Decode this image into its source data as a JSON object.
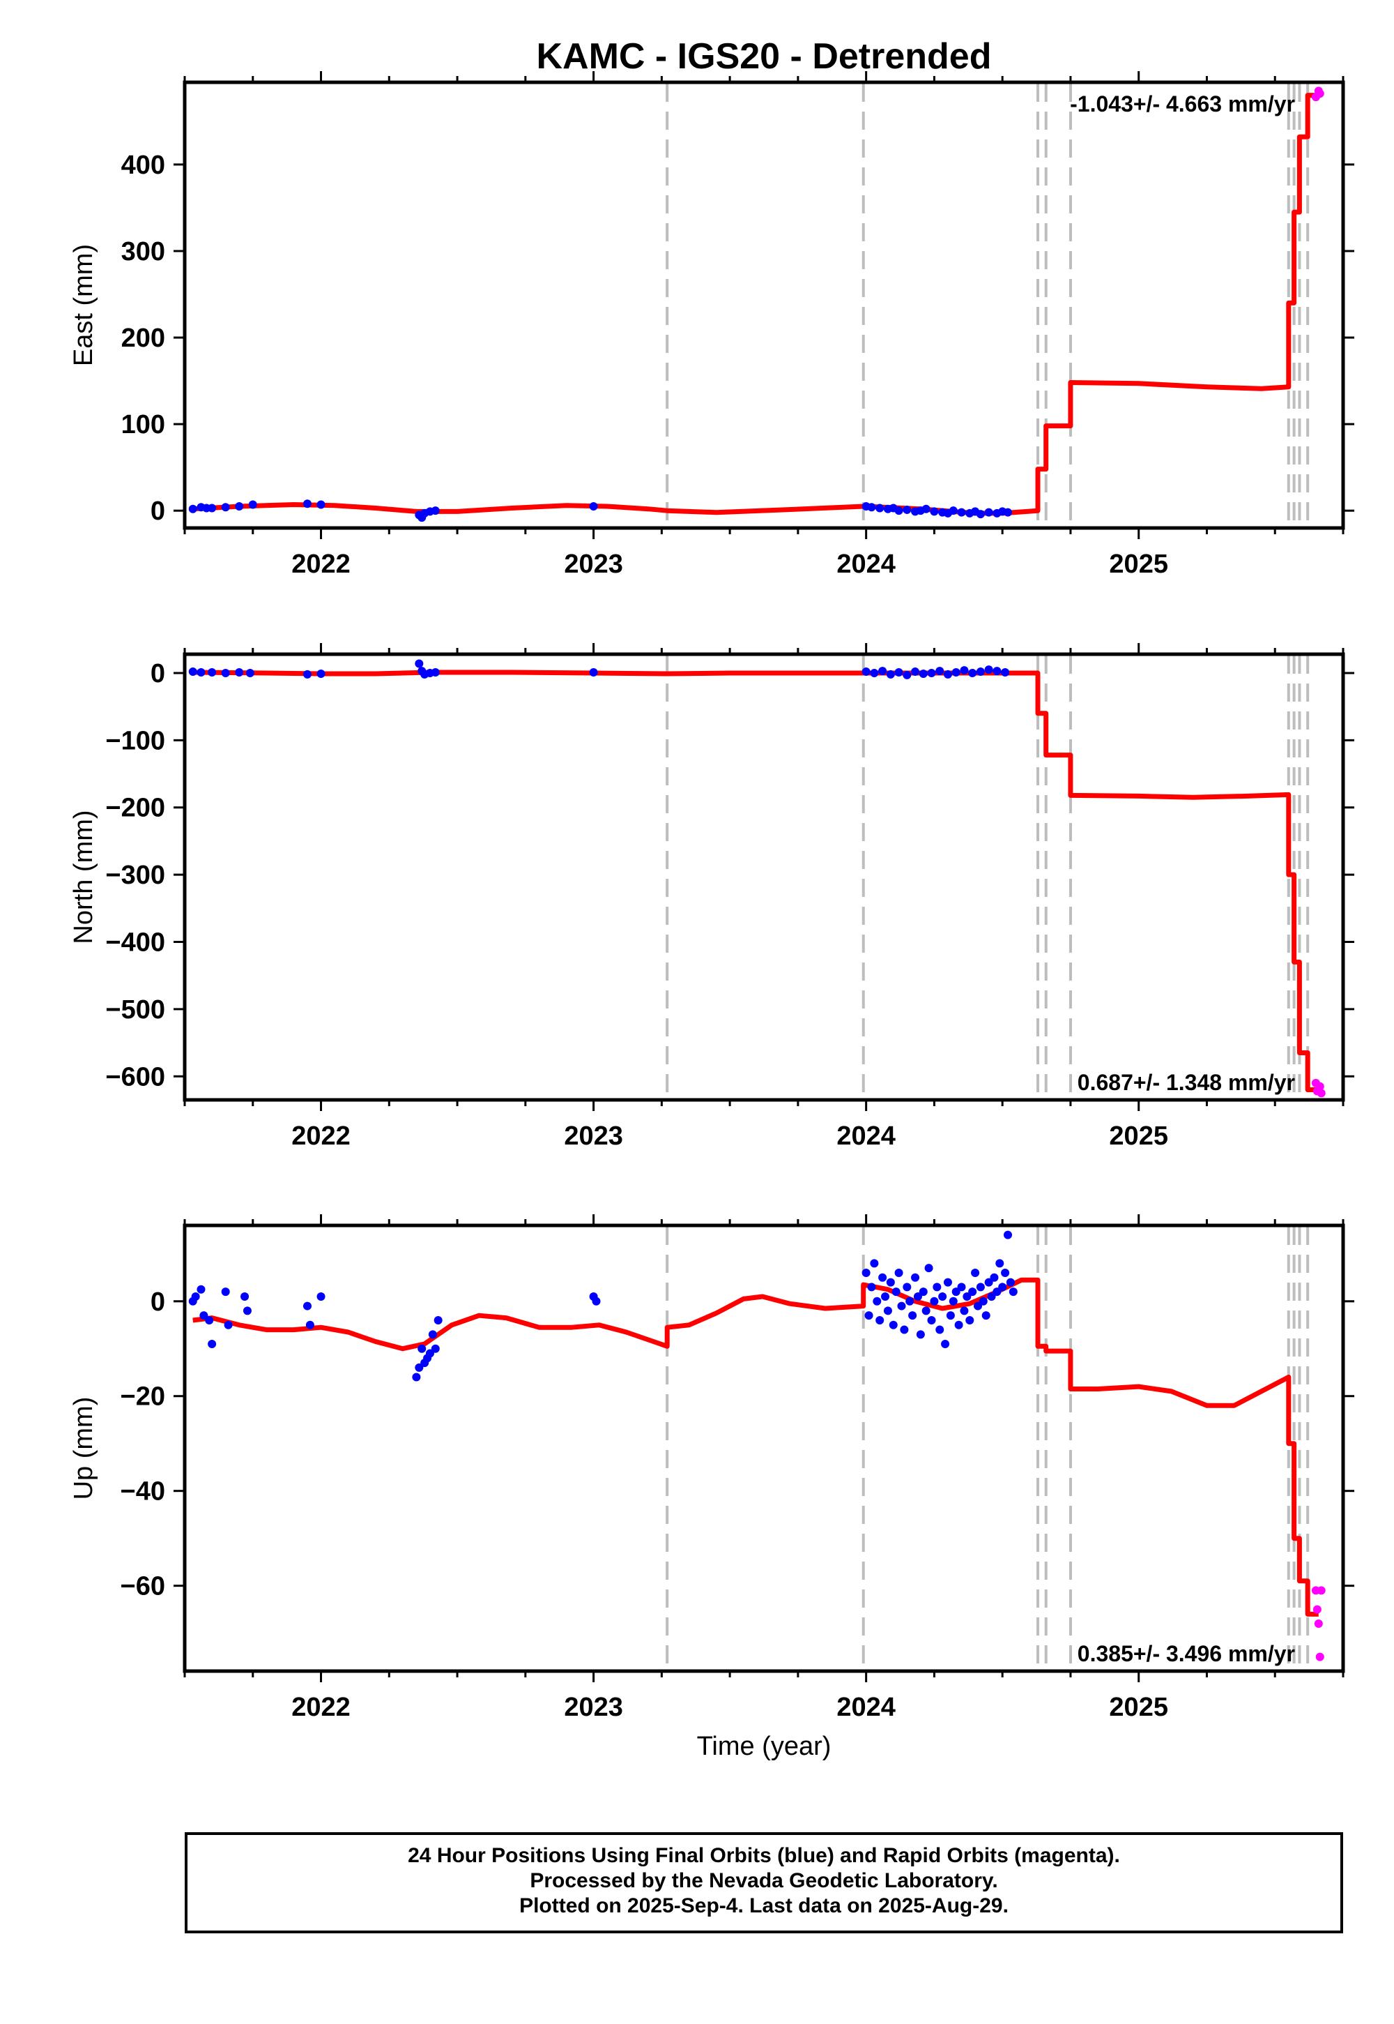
{
  "chart_data": {
    "type": "scatter",
    "title": "KAMC - IGS20 - Detrended",
    "xlabel": "Time (year)",
    "xlim": [
      2021.5,
      2025.75
    ],
    "xticks": [
      2022,
      2023,
      2024,
      2025
    ],
    "xtick_labels": [
      "2022",
      "2023",
      "2024",
      "2025"
    ],
    "event_lines": [
      2023.27,
      2023.99,
      2024.63,
      2024.66,
      2024.75,
      2025.55,
      2025.57,
      2025.59,
      2025.62
    ],
    "panels": [
      {
        "name": "east",
        "ylabel": "East (mm)",
        "ylim": [
          -20,
          495
        ],
        "yticks": [
          0,
          100,
          200,
          300,
          400
        ],
        "ytick_labels": [
          "0",
          "100",
          "200",
          "300",
          "400"
        ],
        "rate_label": "-1.043+/- 4.663 mm/yr",
        "label_pos": "top-right",
        "model": [
          [
            2021.53,
            2
          ],
          [
            2021.7,
            5
          ],
          [
            2021.9,
            7
          ],
          [
            2022.05,
            6
          ],
          [
            2022.2,
            3
          ],
          [
            2022.35,
            -1
          ],
          [
            2022.5,
            -1
          ],
          [
            2022.7,
            3
          ],
          [
            2022.9,
            6
          ],
          [
            2023.05,
            5
          ],
          [
            2023.2,
            2
          ],
          [
            2023.27,
            0
          ],
          [
            2023.45,
            -2
          ],
          [
            2023.7,
            1
          ],
          [
            2023.99,
            5
          ],
          [
            2024.0,
            5
          ],
          [
            2024.2,
            2
          ],
          [
            2024.4,
            -3
          ],
          [
            2024.5,
            -3
          ],
          [
            2024.63,
            0
          ],
          [
            2024.63,
            48
          ],
          [
            2024.66,
            48
          ],
          [
            2024.66,
            98
          ],
          [
            2024.75,
            98
          ],
          [
            2024.75,
            148
          ],
          [
            2025.0,
            147
          ],
          [
            2025.25,
            143
          ],
          [
            2025.45,
            141
          ],
          [
            2025.55,
            143
          ],
          [
            2025.55,
            240
          ],
          [
            2025.57,
            240
          ],
          [
            2025.57,
            345
          ],
          [
            2025.59,
            345
          ],
          [
            2025.59,
            432
          ],
          [
            2025.62,
            432
          ],
          [
            2025.62,
            480
          ],
          [
            2025.66,
            480
          ]
        ],
        "final_points": [
          [
            2021.53,
            2
          ],
          [
            2021.56,
            4
          ],
          [
            2021.58,
            3
          ],
          [
            2021.6,
            3
          ],
          [
            2021.65,
            4
          ],
          [
            2021.7,
            5
          ],
          [
            2021.75,
            7
          ],
          [
            2021.95,
            8
          ],
          [
            2022.0,
            7
          ],
          [
            2022.36,
            -5
          ],
          [
            2022.37,
            -8
          ],
          [
            2022.38,
            -3
          ],
          [
            2022.4,
            -1
          ],
          [
            2022.42,
            0
          ],
          [
            2023.0,
            5
          ],
          [
            2024.0,
            5
          ],
          [
            2024.02,
            4
          ],
          [
            2024.05,
            3
          ],
          [
            2024.08,
            2
          ],
          [
            2024.1,
            3
          ],
          [
            2024.12,
            0
          ],
          [
            2024.15,
            1
          ],
          [
            2024.18,
            -1
          ],
          [
            2024.2,
            0
          ],
          [
            2024.22,
            2
          ],
          [
            2024.25,
            -1
          ],
          [
            2024.28,
            -2
          ],
          [
            2024.3,
            -3
          ],
          [
            2024.32,
            0
          ],
          [
            2024.35,
            -2
          ],
          [
            2024.38,
            -3
          ],
          [
            2024.4,
            -1
          ],
          [
            2024.42,
            -4
          ],
          [
            2024.45,
            -2
          ],
          [
            2024.48,
            -3
          ],
          [
            2024.5,
            -1
          ],
          [
            2024.52,
            -2
          ]
        ],
        "rapid_points": [
          [
            2025.65,
            478
          ],
          [
            2025.66,
            485
          ],
          [
            2025.665,
            482
          ]
        ]
      },
      {
        "name": "north",
        "ylabel": "North (mm)",
        "ylim": [
          -635,
          28
        ],
        "yticks": [
          0,
          -100,
          -200,
          -300,
          -400,
          -500,
          -600
        ],
        "ytick_labels": [
          "0",
          "−100",
          "−200",
          "−300",
          "−400",
          "−500",
          "−600"
        ],
        "rate_label": "0.687+/- 1.348 mm/yr",
        "label_pos": "bottom-right",
        "model": [
          [
            2021.53,
            1
          ],
          [
            2021.8,
            0
          ],
          [
            2022.0,
            -1
          ],
          [
            2022.2,
            -1
          ],
          [
            2022.4,
            1
          ],
          [
            2022.7,
            1
          ],
          [
            2023.0,
            0
          ],
          [
            2023.27,
            -1
          ],
          [
            2023.5,
            0
          ],
          [
            2023.99,
            0
          ],
          [
            2024.3,
            0
          ],
          [
            2024.63,
            0
          ],
          [
            2024.63,
            -60
          ],
          [
            2024.66,
            -60
          ],
          [
            2024.66,
            -122
          ],
          [
            2024.75,
            -122
          ],
          [
            2024.75,
            -182
          ],
          [
            2025.0,
            -183
          ],
          [
            2025.2,
            -185
          ],
          [
            2025.4,
            -183
          ],
          [
            2025.55,
            -181
          ],
          [
            2025.55,
            -300
          ],
          [
            2025.57,
            -300
          ],
          [
            2025.57,
            -430
          ],
          [
            2025.59,
            -430
          ],
          [
            2025.59,
            -565
          ],
          [
            2025.62,
            -565
          ],
          [
            2025.62,
            -620
          ],
          [
            2025.66,
            -620
          ]
        ],
        "final_points": [
          [
            2021.53,
            2
          ],
          [
            2021.56,
            1
          ],
          [
            2021.6,
            1
          ],
          [
            2021.65,
            0
          ],
          [
            2021.7,
            1
          ],
          [
            2021.74,
            0
          ],
          [
            2021.95,
            -2
          ],
          [
            2022.0,
            -1
          ],
          [
            2022.36,
            14
          ],
          [
            2022.37,
            3
          ],
          [
            2022.38,
            -2
          ],
          [
            2022.4,
            0
          ],
          [
            2022.42,
            1
          ],
          [
            2023.0,
            1
          ],
          [
            2024.0,
            2
          ],
          [
            2024.03,
            0
          ],
          [
            2024.06,
            3
          ],
          [
            2024.09,
            -2
          ],
          [
            2024.12,
            1
          ],
          [
            2024.15,
            -3
          ],
          [
            2024.18,
            2
          ],
          [
            2024.21,
            -1
          ],
          [
            2024.24,
            0
          ],
          [
            2024.27,
            3
          ],
          [
            2024.3,
            -2
          ],
          [
            2024.33,
            1
          ],
          [
            2024.36,
            4
          ],
          [
            2024.39,
            0
          ],
          [
            2024.42,
            2
          ],
          [
            2024.45,
            5
          ],
          [
            2024.48,
            3
          ],
          [
            2024.51,
            1
          ]
        ],
        "rapid_points": [
          [
            2025.65,
            -610
          ],
          [
            2025.655,
            -622
          ],
          [
            2025.665,
            -615
          ],
          [
            2025.67,
            -625
          ]
        ]
      },
      {
        "name": "up",
        "ylabel": "Up (mm)",
        "ylim": [
          -78,
          16
        ],
        "yticks": [
          0,
          -20,
          -40,
          -60
        ],
        "ytick_labels": [
          "0",
          "−20",
          "−40",
          "−60"
        ],
        "rate_label": "0.385+/- 3.496 mm/yr",
        "label_pos": "bottom-right",
        "model": [
          [
            2021.53,
            -4
          ],
          [
            2021.6,
            -3.5
          ],
          [
            2021.7,
            -5
          ],
          [
            2021.8,
            -6
          ],
          [
            2021.9,
            -6
          ],
          [
            2022.0,
            -5.5
          ],
          [
            2022.1,
            -6.5
          ],
          [
            2022.2,
            -8.5
          ],
          [
            2022.3,
            -10
          ],
          [
            2022.38,
            -9
          ],
          [
            2022.48,
            -5
          ],
          [
            2022.58,
            -3
          ],
          [
            2022.68,
            -3.5
          ],
          [
            2022.8,
            -5.5
          ],
          [
            2022.92,
            -5.5
          ],
          [
            2023.02,
            -5
          ],
          [
            2023.12,
            -6.5
          ],
          [
            2023.22,
            -8.5
          ],
          [
            2023.27,
            -9.5
          ],
          [
            2023.27,
            -5.5
          ],
          [
            2023.35,
            -5
          ],
          [
            2023.45,
            -2.5
          ],
          [
            2023.55,
            0.5
          ],
          [
            2023.62,
            1
          ],
          [
            2023.72,
            -0.5
          ],
          [
            2023.85,
            -1.5
          ],
          [
            2023.99,
            -1
          ],
          [
            2023.99,
            3.5
          ],
          [
            2024.08,
            2.5
          ],
          [
            2024.18,
            0
          ],
          [
            2024.28,
            -1.5
          ],
          [
            2024.38,
            -0.5
          ],
          [
            2024.48,
            2
          ],
          [
            2024.57,
            4.5
          ],
          [
            2024.63,
            4.5
          ],
          [
            2024.63,
            -9.5
          ],
          [
            2024.66,
            -9.5
          ],
          [
            2024.66,
            -10.5
          ],
          [
            2024.75,
            -10.5
          ],
          [
            2024.75,
            -18.5
          ],
          [
            2024.85,
            -18.5
          ],
          [
            2025.0,
            -18
          ],
          [
            2025.12,
            -19
          ],
          [
            2025.25,
            -22
          ],
          [
            2025.35,
            -22
          ],
          [
            2025.45,
            -19
          ],
          [
            2025.55,
            -16
          ],
          [
            2025.55,
            -30
          ],
          [
            2025.57,
            -30
          ],
          [
            2025.57,
            -50
          ],
          [
            2025.59,
            -50
          ],
          [
            2025.59,
            -59
          ],
          [
            2025.62,
            -59
          ],
          [
            2025.62,
            -66
          ],
          [
            2025.66,
            -66
          ]
        ],
        "final_points": [
          [
            2021.53,
            0
          ],
          [
            2021.54,
            1
          ],
          [
            2021.56,
            2.5
          ],
          [
            2021.57,
            -3
          ],
          [
            2021.59,
            -4
          ],
          [
            2021.6,
            -9
          ],
          [
            2021.65,
            2
          ],
          [
            2021.66,
            -5
          ],
          [
            2021.72,
            1
          ],
          [
            2021.73,
            -2
          ],
          [
            2021.95,
            -1
          ],
          [
            2021.96,
            -5
          ],
          [
            2022.0,
            1
          ],
          [
            2022.35,
            -16
          ],
          [
            2022.36,
            -14
          ],
          [
            2022.37,
            -10
          ],
          [
            2022.38,
            -13
          ],
          [
            2022.39,
            -12
          ],
          [
            2022.4,
            -11
          ],
          [
            2022.41,
            -7
          ],
          [
            2022.42,
            -10
          ],
          [
            2022.43,
            -4
          ],
          [
            2023.0,
            1
          ],
          [
            2023.01,
            0
          ],
          [
            2024.0,
            6
          ],
          [
            2024.01,
            -3
          ],
          [
            2024.02,
            3
          ],
          [
            2024.03,
            8
          ],
          [
            2024.04,
            0
          ],
          [
            2024.05,
            -4
          ],
          [
            2024.06,
            5
          ],
          [
            2024.07,
            1
          ],
          [
            2024.08,
            -2
          ],
          [
            2024.09,
            4
          ],
          [
            2024.1,
            -5
          ],
          [
            2024.11,
            2
          ],
          [
            2024.12,
            6
          ],
          [
            2024.13,
            -1
          ],
          [
            2024.14,
            -6
          ],
          [
            2024.15,
            3
          ],
          [
            2024.16,
            0
          ],
          [
            2024.17,
            -3
          ],
          [
            2024.18,
            5
          ],
          [
            2024.19,
            1
          ],
          [
            2024.2,
            -7
          ],
          [
            2024.21,
            2
          ],
          [
            2024.22,
            -2
          ],
          [
            2024.23,
            7
          ],
          [
            2024.24,
            -4
          ],
          [
            2024.25,
            0
          ],
          [
            2024.26,
            3
          ],
          [
            2024.27,
            -6
          ],
          [
            2024.28,
            1
          ],
          [
            2024.29,
            -9
          ],
          [
            2024.3,
            4
          ],
          [
            2024.31,
            -3
          ],
          [
            2024.32,
            0
          ],
          [
            2024.33,
            2
          ],
          [
            2024.34,
            -5
          ],
          [
            2024.35,
            3
          ],
          [
            2024.36,
            -2
          ],
          [
            2024.37,
            1
          ],
          [
            2024.38,
            -4
          ],
          [
            2024.39,
            2
          ],
          [
            2024.4,
            6
          ],
          [
            2024.41,
            -1
          ],
          [
            2024.42,
            3
          ],
          [
            2024.43,
            0
          ],
          [
            2024.44,
            -3
          ],
          [
            2024.45,
            4
          ],
          [
            2024.46,
            1
          ],
          [
            2024.47,
            5
          ],
          [
            2024.48,
            2
          ],
          [
            2024.49,
            8
          ],
          [
            2024.5,
            3
          ],
          [
            2024.51,
            6
          ],
          [
            2024.52,
            14
          ],
          [
            2024.53,
            4
          ],
          [
            2024.54,
            2
          ]
        ],
        "rapid_points": [
          [
            2025.65,
            -61
          ],
          [
            2025.655,
            -65
          ],
          [
            2025.66,
            -68
          ],
          [
            2025.665,
            -75
          ],
          [
            2025.67,
            -61
          ]
        ]
      }
    ],
    "series": [
      {
        "name": "Final Orbits",
        "color": "#0000ff"
      },
      {
        "name": "Rapid Orbits",
        "color": "#ff00ff"
      },
      {
        "name": "Model",
        "color": "#ff0000"
      }
    ],
    "grid": false
  },
  "footer": {
    "line1": "24 Hour Positions Using Final Orbits (blue) and Rapid Orbits (magenta).",
    "line2": "Processed by the Nevada Geodetic Laboratory.",
    "line3": "Plotted on 2025-Sep-4. Last data on 2025-Aug-29."
  }
}
